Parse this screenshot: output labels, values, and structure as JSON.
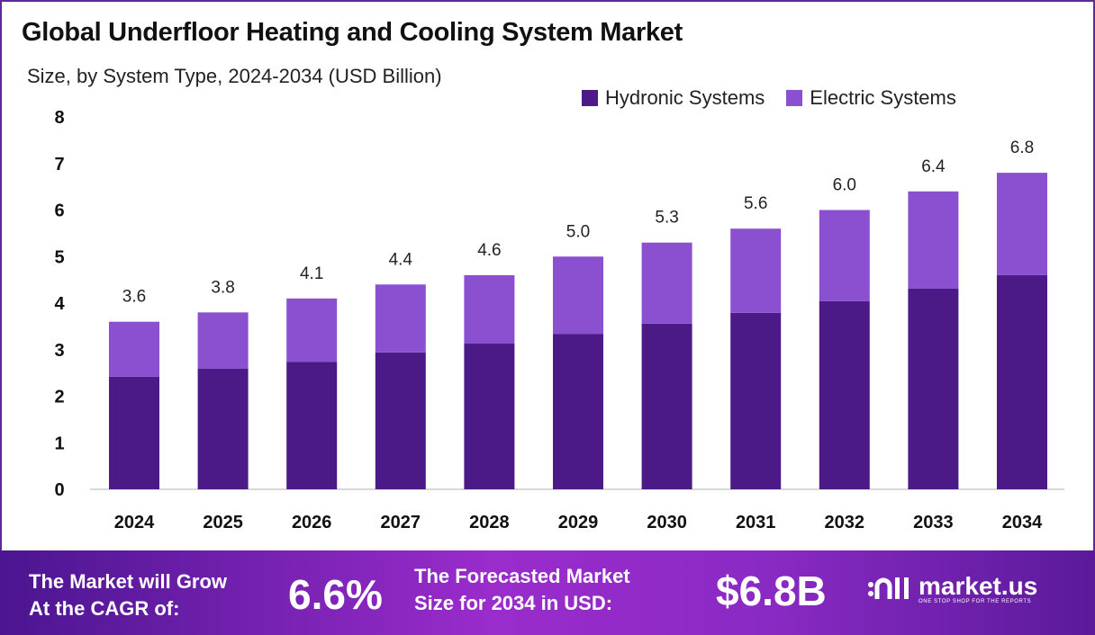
{
  "chart_data": {
    "type": "bar",
    "stacked": true,
    "title": "Global Underfloor Heating and Cooling System Market",
    "subtitle": "Size, by System Type, 2024-2034 (USD Billion)",
    "categories": [
      "2024",
      "2025",
      "2026",
      "2027",
      "2028",
      "2029",
      "2030",
      "2031",
      "2032",
      "2033",
      "2034"
    ],
    "series": [
      {
        "name": "Hydronic Systems",
        "color": "#4b1a86",
        "values": [
          2.42,
          2.59,
          2.74,
          2.94,
          3.13,
          3.34,
          3.56,
          3.79,
          4.04,
          4.31,
          4.6
        ]
      },
      {
        "name": "Electric Systems",
        "color": "#8b50d0",
        "values": [
          1.18,
          1.21,
          1.36,
          1.46,
          1.47,
          1.66,
          1.74,
          1.81,
          1.96,
          2.09,
          2.2
        ]
      }
    ],
    "totals_labels": [
      "3.6",
      "3.8",
      "4.1",
      "4.4",
      "4.6",
      "5.0",
      "5.3",
      "5.6",
      "6.0",
      "6.4",
      "6.8"
    ],
    "totals": [
      3.6,
      3.8,
      4.1,
      4.4,
      4.6,
      5.0,
      5.3,
      5.6,
      6.0,
      6.4,
      6.8
    ],
    "yticks": [
      "0",
      "1",
      "2",
      "3",
      "4",
      "5",
      "6",
      "7",
      "8"
    ],
    "ylim": [
      0,
      8
    ],
    "grid": false,
    "legend": "top-right"
  },
  "footer": {
    "cagr_label_1": "The Market will Grow",
    "cagr_label_2": "At the CAGR of:",
    "cagr_value": "6.6%",
    "forecast_label_1": "The Forecasted Market",
    "forecast_label_2": "Size for 2034 in USD:",
    "forecast_value": "$6.8B",
    "logo_name": "market.us",
    "logo_tagline": "ONE STOP SHOP FOR THE REPORTS"
  }
}
